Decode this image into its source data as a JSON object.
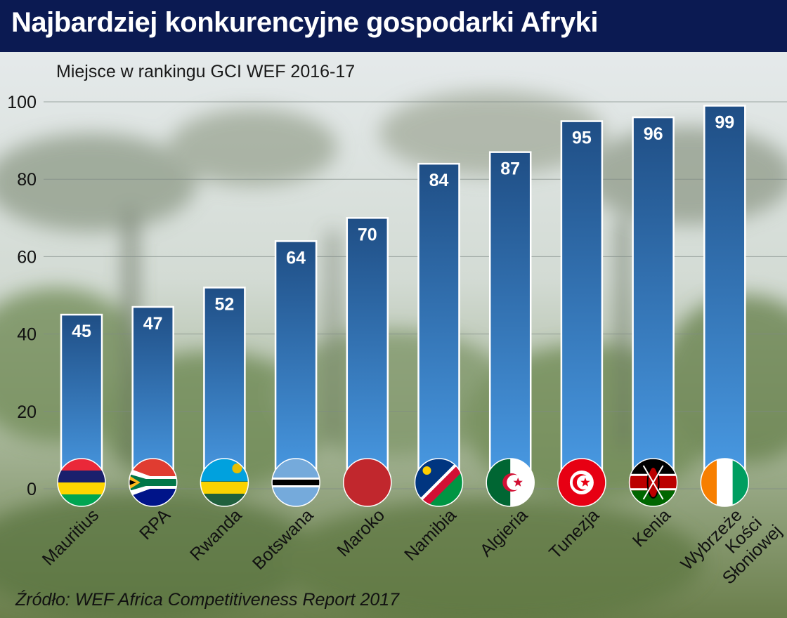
{
  "header": {
    "title": "Najbardziej konkurencyjne gospodarki Afryki"
  },
  "source": "Źródło: WEF Africa Competitiveness Report 2017",
  "chart_data": {
    "type": "bar",
    "subtitle": "Miejsce w rankingu GCI WEF 2016-17",
    "categories": [
      "Mauritius",
      "RPA",
      "Rwanda",
      "Botswana",
      "Maroko",
      "Namibia",
      "Algieria",
      "Tunezja",
      "Kenia",
      "Wybrzeże Kości Słoniowej"
    ],
    "category_lines": [
      [
        "Mauritius"
      ],
      [
        "RPA"
      ],
      [
        "Rwanda"
      ],
      [
        "Botswana"
      ],
      [
        "Maroko"
      ],
      [
        "Namibia"
      ],
      [
        "Algieria"
      ],
      [
        "Tunezja"
      ],
      [
        "Kenia"
      ],
      [
        "Wybrzeże",
        "Kości",
        "Słoniowej"
      ]
    ],
    "values": [
      45,
      47,
      52,
      64,
      70,
      84,
      87,
      95,
      96,
      99
    ],
    "ylim": [
      0,
      100
    ],
    "yticks": [
      0,
      20,
      40,
      60,
      80,
      100
    ],
    "grid": true,
    "legend": "none",
    "flag_icons": [
      "mauritius-flag-icon",
      "south-africa-flag-icon",
      "rwanda-flag-icon",
      "botswana-flag-icon",
      "morocco-flag-icon",
      "namibia-flag-icon",
      "algeria-flag-icon",
      "tunisia-flag-icon",
      "kenya-flag-icon",
      "ivory-coast-flag-icon"
    ],
    "colors": {
      "bar_top": "#1f4e85",
      "bar_bottom": "#4a9ce6",
      "header": "#0b1a52"
    }
  }
}
